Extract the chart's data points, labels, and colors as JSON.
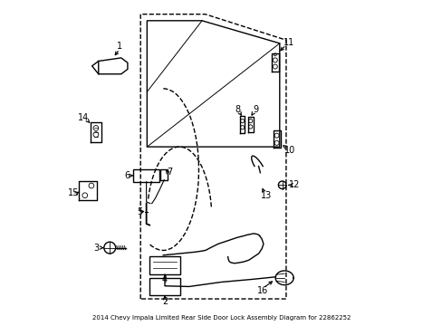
{
  "title": "2014 Chevy Impala Limited Rear Side Door Lock Assembly Diagram for 22862252",
  "background_color": "#ffffff",
  "line_color": "#000000",
  "fig_width": 4.89,
  "fig_height": 3.6,
  "dpi": 100
}
